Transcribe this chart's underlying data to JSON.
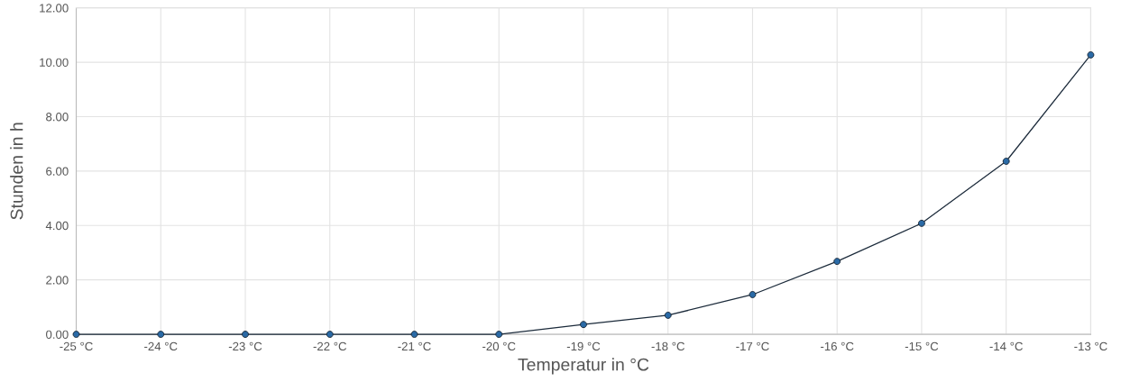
{
  "chart_data": {
    "type": "line",
    "xlabel": "Temperatur in °C",
    "ylabel": "Stunden in h",
    "categories": [
      "-25 °C",
      "-24 °C",
      "-23 °C",
      "-22 °C",
      "-21 °C",
      "-20 °C",
      "-19 °C",
      "-18 °C",
      "-17 °C",
      "-16 °C",
      "-15 °C",
      "-14 °C",
      "-13 °C"
    ],
    "series": [
      {
        "color": "#2a6aa6",
        "values": [
          0,
          0,
          0,
          0,
          0,
          0,
          0.36,
          0.7,
          1.46,
          2.68,
          4.08,
          6.36,
          10.27
        ]
      }
    ],
    "ylim": [
      0,
      12
    ],
    "yticks": [
      {
        "value": 0,
        "label": "0.00"
      },
      {
        "value": 2,
        "label": "2.00"
      },
      {
        "value": 4,
        "label": "4.00"
      },
      {
        "value": 6,
        "label": "6.00"
      },
      {
        "value": 8,
        "label": "8.00"
      },
      {
        "value": 10,
        "label": "10.00"
      },
      {
        "value": 12,
        "label": "12.00"
      }
    ],
    "grid": true,
    "marker": "circle",
    "line_style": "solid"
  }
}
